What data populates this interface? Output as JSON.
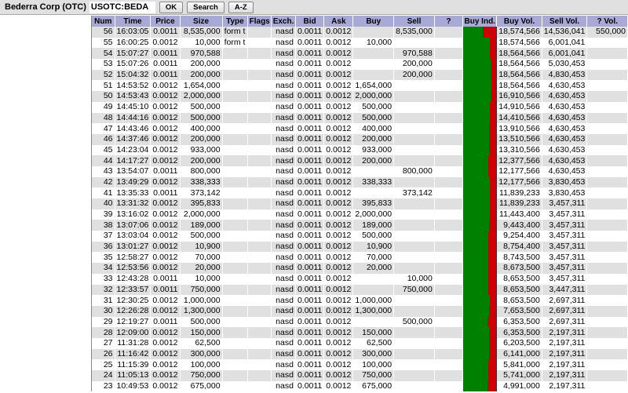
{
  "toolbar": {
    "title": "Bederra Corp (OTC)",
    "symbol": "USOTC:BEDA",
    "ok": "OK",
    "search": "Search",
    "az": "A-Z"
  },
  "colors": {
    "buy_indicator": "#008000",
    "sell_indicator": "#cc0000",
    "header": "#a9a9d8"
  },
  "columns": [
    "Num",
    "Time",
    "Price",
    "Size",
    "Type",
    "Flags",
    "Exch.",
    "Bid",
    "Ask",
    "Buy",
    "Sell",
    "?",
    "Buy Ind.",
    "Buy Vol.",
    "Sell Vol.",
    "? Vol."
  ],
  "rows": [
    [
      "56",
      "16:03:05",
      "0.0011",
      "8,535,000",
      "form t",
      "",
      "nasd",
      "0.0011",
      "0.0012",
      "",
      "8,535,000",
      "",
      "18,574,566",
      "14,536,041",
      "550,000"
    ],
    [
      "55",
      "16:00:25",
      "0.0012",
      "10,000",
      "form t",
      "",
      "nasd",
      "0.0011",
      "0.0012",
      "10,000",
      "",
      "",
      "18,574,566",
      "6,001,041",
      ""
    ],
    [
      "54",
      "15:07:27",
      "0.0011",
      "970,588",
      "",
      "",
      "nasd",
      "0.0011",
      "0.0012",
      "",
      "970,588",
      "",
      "18,564,566",
      "6,001,041",
      ""
    ],
    [
      "53",
      "15:07:26",
      "0.0011",
      "200,000",
      "",
      "",
      "nasd",
      "0.0011",
      "0.0012",
      "",
      "200,000",
      "",
      "18,564,566",
      "5,030,453",
      ""
    ],
    [
      "52",
      "15:04:32",
      "0.0011",
      "200,000",
      "",
      "",
      "nasd",
      "0.0011",
      "0.0012",
      "",
      "200,000",
      "",
      "18,564,566",
      "4,830,453",
      ""
    ],
    [
      "51",
      "14:53:52",
      "0.0012",
      "1,654,000",
      "",
      "",
      "nasd",
      "0.0011",
      "0.0012",
      "1,654,000",
      "",
      "",
      "18,564,566",
      "4,630,453",
      ""
    ],
    [
      "50",
      "14:53:43",
      "0.0012",
      "2,000,000",
      "",
      "",
      "nasd",
      "0.0011",
      "0.0012",
      "2,000,000",
      "",
      "",
      "16,910,566",
      "4,630,453",
      ""
    ],
    [
      "49",
      "14:45:10",
      "0.0012",
      "500,000",
      "",
      "",
      "nasd",
      "0.0011",
      "0.0012",
      "500,000",
      "",
      "",
      "14,910,566",
      "4,630,453",
      ""
    ],
    [
      "48",
      "14:44:16",
      "0.0012",
      "500,000",
      "",
      "",
      "nasd",
      "0.0011",
      "0.0012",
      "500,000",
      "",
      "",
      "14,410,566",
      "4,630,453",
      ""
    ],
    [
      "47",
      "14:43:46",
      "0.0012",
      "400,000",
      "",
      "",
      "nasd",
      "0.0011",
      "0.0012",
      "400,000",
      "",
      "",
      "13,910,566",
      "4,630,453",
      ""
    ],
    [
      "46",
      "14:37:46",
      "0.0012",
      "200,000",
      "",
      "",
      "nasd",
      "0.0011",
      "0.0012",
      "200,000",
      "",
      "",
      "13,510,566",
      "4,630,453",
      ""
    ],
    [
      "45",
      "14:23:04",
      "0.0012",
      "933,000",
      "",
      "",
      "nasd",
      "0.0011",
      "0.0012",
      "933,000",
      "",
      "",
      "13,310,566",
      "4,630,453",
      ""
    ],
    [
      "44",
      "14:17:27",
      "0.0012",
      "200,000",
      "",
      "",
      "nasd",
      "0.0011",
      "0.0012",
      "200,000",
      "",
      "",
      "12,377,566",
      "4,630,453",
      ""
    ],
    [
      "43",
      "13:54:07",
      "0.0011",
      "800,000",
      "",
      "",
      "nasd",
      "0.0011",
      "0.0012",
      "",
      "800,000",
      "",
      "12,177,566",
      "4,630,453",
      ""
    ],
    [
      "42",
      "13:49:29",
      "0.0012",
      "338,333",
      "",
      "",
      "nasd",
      "0.0011",
      "0.0012",
      "338,333",
      "",
      "",
      "12,177,566",
      "3,830,453",
      ""
    ],
    [
      "41",
      "13:35:33",
      "0.0011",
      "373,142",
      "",
      "",
      "nasd",
      "0.0011",
      "0.0012",
      "",
      "373,142",
      "",
      "11,839,233",
      "3,830,453",
      ""
    ],
    [
      "40",
      "13:31:32",
      "0.0012",
      "395,833",
      "",
      "",
      "nasd",
      "0.0011",
      "0.0012",
      "395,833",
      "",
      "",
      "11,839,233",
      "3,457,311",
      ""
    ],
    [
      "39",
      "13:16:02",
      "0.0012",
      "2,000,000",
      "",
      "",
      "nasd",
      "0.0011",
      "0.0012",
      "2,000,000",
      "",
      "",
      "11,443,400",
      "3,457,311",
      ""
    ],
    [
      "38",
      "13:07:06",
      "0.0012",
      "189,000",
      "",
      "",
      "nasd",
      "0.0011",
      "0.0012",
      "189,000",
      "",
      "",
      "9,443,400",
      "3,457,311",
      ""
    ],
    [
      "37",
      "13:03:04",
      "0.0012",
      "500,000",
      "",
      "",
      "nasd",
      "0.0011",
      "0.0012",
      "500,000",
      "",
      "",
      "9,254,400",
      "3,457,311",
      ""
    ],
    [
      "36",
      "13:01:27",
      "0.0012",
      "10,900",
      "",
      "",
      "nasd",
      "0.0011",
      "0.0012",
      "10,900",
      "",
      "",
      "8,754,400",
      "3,457,311",
      ""
    ],
    [
      "35",
      "12:58:27",
      "0.0012",
      "70,000",
      "",
      "",
      "nasd",
      "0.0011",
      "0.0012",
      "70,000",
      "",
      "",
      "8,743,500",
      "3,457,311",
      ""
    ],
    [
      "34",
      "12:53:56",
      "0.0012",
      "20,000",
      "",
      "",
      "nasd",
      "0.0011",
      "0.0012",
      "20,000",
      "",
      "",
      "8,673,500",
      "3,457,311",
      ""
    ],
    [
      "33",
      "12:43:28",
      "0.0011",
      "10,000",
      "",
      "",
      "nasd",
      "0.0011",
      "0.0012",
      "",
      "10,000",
      "",
      "8,653,500",
      "3,457,311",
      ""
    ],
    [
      "32",
      "12:33:57",
      "0.0011",
      "750,000",
      "",
      "",
      "nasd",
      "0.0011",
      "0.0012",
      "",
      "750,000",
      "",
      "8,653,500",
      "3,447,311",
      ""
    ],
    [
      "31",
      "12:30:25",
      "0.0012",
      "1,000,000",
      "",
      "",
      "nasd",
      "0.0011",
      "0.0012",
      "1,000,000",
      "",
      "",
      "8,653,500",
      "2,697,311",
      ""
    ],
    [
      "30",
      "12:26:28",
      "0.0012",
      "1,300,000",
      "",
      "",
      "nasd",
      "0.0011",
      "0.0012",
      "1,300,000",
      "",
      "",
      "7,653,500",
      "2,697,311",
      ""
    ],
    [
      "29",
      "12:19:27",
      "0.0011",
      "500,000",
      "",
      "",
      "nasd",
      "0.0011",
      "0.0012",
      "",
      "500,000",
      "",
      "6,353,500",
      "2,697,311",
      ""
    ],
    [
      "28",
      "12:09:00",
      "0.0012",
      "150,000",
      "",
      "",
      "nasd",
      "0.0011",
      "0.0012",
      "150,000",
      "",
      "",
      "6,353,500",
      "2,197,311",
      ""
    ],
    [
      "27",
      "11:31:28",
      "0.0012",
      "62,500",
      "",
      "",
      "nasd",
      "0.0011",
      "0.0012",
      "62,500",
      "",
      "",
      "6,203,500",
      "2,197,311",
      ""
    ],
    [
      "26",
      "11:16:42",
      "0.0012",
      "300,000",
      "",
      "",
      "nasd",
      "0.0011",
      "0.0012",
      "300,000",
      "",
      "",
      "6,141,000",
      "2,197,311",
      ""
    ],
    [
      "25",
      "11:15:39",
      "0.0012",
      "100,000",
      "",
      "",
      "nasd",
      "0.0011",
      "0.0012",
      "100,000",
      "",
      "",
      "5,841,000",
      "2,197,311",
      ""
    ],
    [
      "24",
      "11:05:13",
      "0.0012",
      "750,000",
      "",
      "",
      "nasd",
      "0.0011",
      "0.0012",
      "750,000",
      "",
      "",
      "5,741,000",
      "2,197,311",
      ""
    ],
    [
      "23",
      "10:49:53",
      "0.0012",
      "675,000",
      "",
      "",
      "nasd",
      "0.0011",
      "0.0012",
      "675,000",
      "",
      "",
      "4,991,000",
      "2,197,311",
      ""
    ]
  ]
}
